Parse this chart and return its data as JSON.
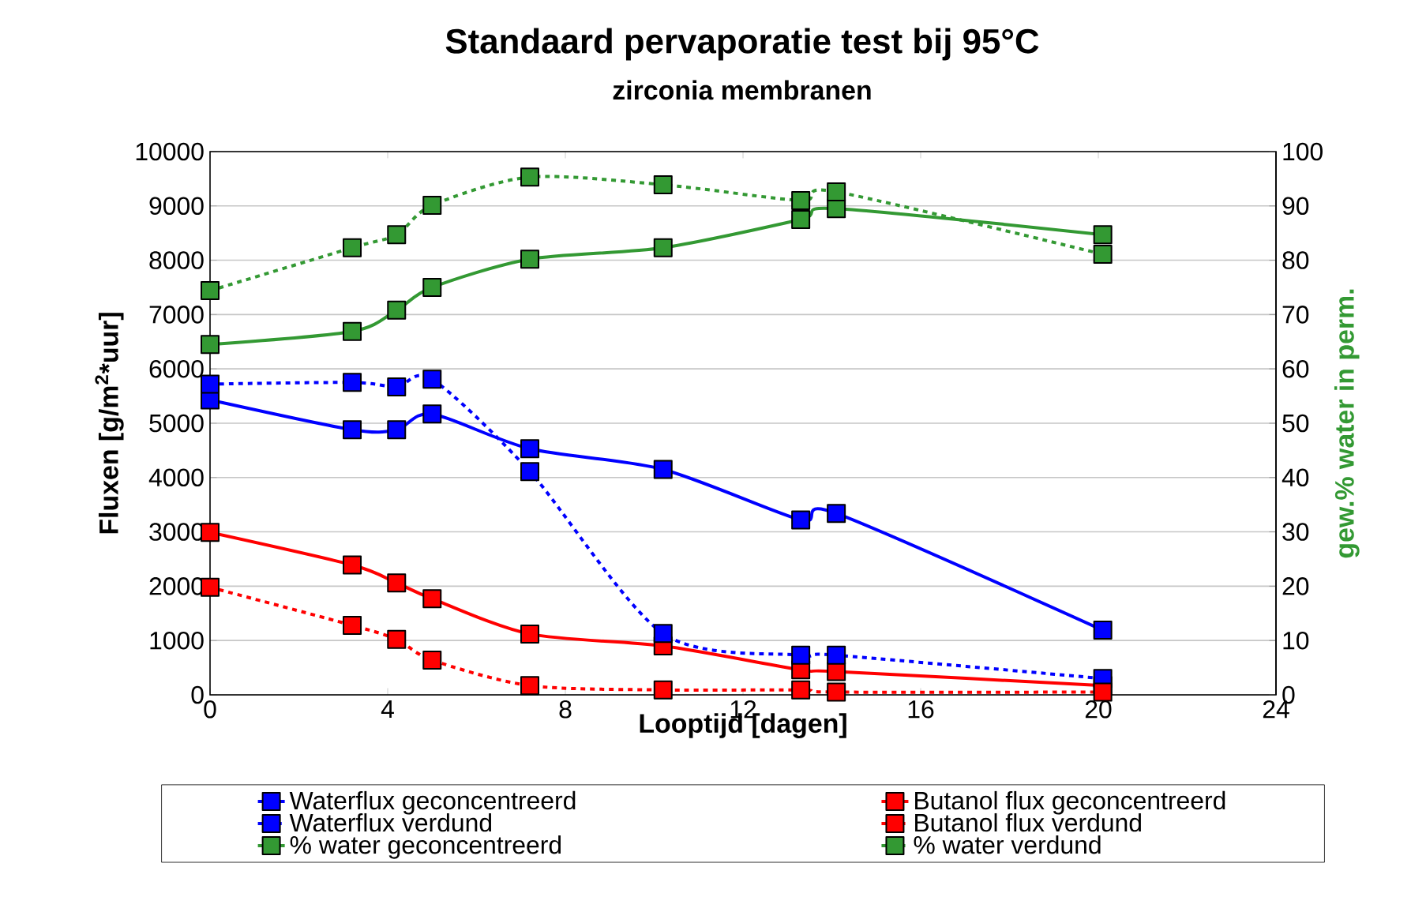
{
  "chart_data": {
    "type": "line",
    "title": "Standaard pervaporatie test bij 95°C",
    "subtitle": "zirconia membranen",
    "xlabel": "Looptijd [dagen]",
    "ylabel": "Fluxen  [g/m$^{2}$*uur]",
    "y2label": "gew.% water in perm.",
    "x": [
      0,
      3.2,
      4.2,
      5.0,
      7.2,
      10.2,
      13.3,
      14.1,
      20.1
    ],
    "xlim": [
      0,
      24
    ],
    "xticks": [
      0,
      4,
      8,
      12,
      16,
      20,
      24
    ],
    "ylim": [
      0,
      10000
    ],
    "yticks": [
      0,
      1000,
      2000,
      3000,
      4000,
      5000,
      6000,
      7000,
      8000,
      9000,
      10000
    ],
    "y2lim": [
      0,
      100
    ],
    "y2ticks": [
      0,
      10,
      20,
      30,
      40,
      50,
      60,
      70,
      80,
      90,
      100
    ],
    "grid": "y",
    "legend": "bottom",
    "marker": "square",
    "series": [
      {
        "name": "Waterflux geconcentreerd",
        "color": "#0000ff",
        "line_style": "solid",
        "values": [
          5430,
          4880,
          4880,
          5170,
          4530,
          4150,
          3220,
          3340,
          1190
        ]
      },
      {
        "name": "Butanol flux geconcentreerd",
        "color": "#ff0000",
        "line_style": "solid",
        "values": [
          2990,
          2390,
          2060,
          1770,
          1120,
          900,
          460,
          430,
          170
        ]
      },
      {
        "name": "Waterflux verdund",
        "color": "#0000ff",
        "line_style": "dashed",
        "values": [
          5720,
          5750,
          5670,
          5810,
          4110,
          1130,
          730,
          730,
          300
        ]
      },
      {
        "name": "Butanol flux verdund",
        "color": "#ff0000",
        "line_style": "dashed",
        "values": [
          1980,
          1280,
          1020,
          640,
          170,
          90,
          90,
          50,
          50
        ]
      },
      {
        "name": "% water geconcentreerd",
        "color": "#339933",
        "line_style": "solid",
        "axis": "y2",
        "values": [
          64.5,
          66.9,
          70.8,
          75.0,
          80.2,
          82.3,
          87.5,
          89.5,
          84.7
        ]
      },
      {
        "name": "% water verdund",
        "color": "#339933",
        "line_style": "dashed",
        "axis": "y2",
        "values": [
          74.4,
          82.3,
          84.7,
          90.1,
          95.3,
          93.9,
          91.0,
          92.6,
          81.1
        ]
      }
    ]
  }
}
